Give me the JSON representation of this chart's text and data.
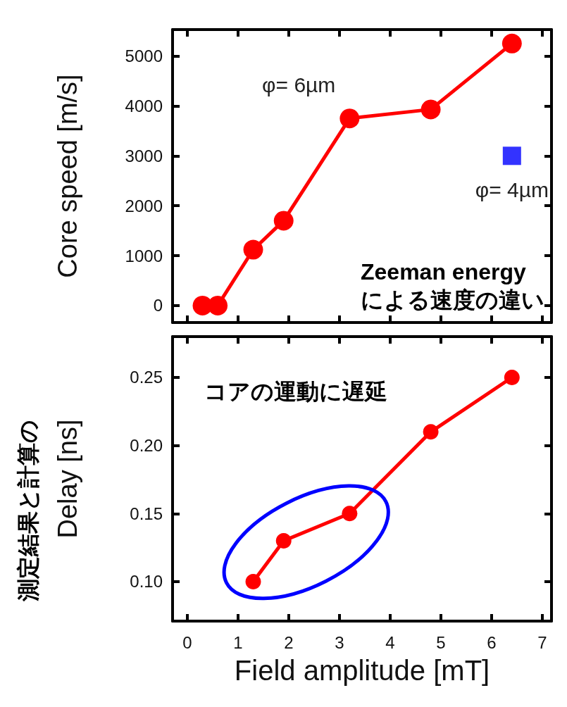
{
  "chart_data": [
    {
      "type": "line",
      "ylabel": "Core speed [m/s]",
      "xlim": [
        -0.29,
        7.18
      ],
      "xticks": [
        0,
        1,
        2,
        3,
        4,
        5,
        6,
        7
      ],
      "ylim": [
        -340,
        5530
      ],
      "yticks": [
        0,
        1000,
        2000,
        3000,
        4000,
        5000
      ],
      "tick_labels": "y",
      "marker": "circle",
      "line_style": "solid",
      "grid": false,
      "series": [
        {
          "name": "φ= 6µm",
          "color": "#ff0000",
          "x": [
            0.3,
            0.6,
            1.3,
            1.9,
            3.2,
            4.8,
            6.4
          ],
          "values": [
            0,
            0,
            1120,
            1700,
            3750,
            3930,
            5250
          ]
        },
        {
          "name": "φ= 4µm",
          "type": "scatter",
          "marker": "square",
          "color": "#0000ff",
          "x": [
            6.4
          ],
          "values": [
            3000
          ]
        }
      ],
      "annotations": [
        "Zeeman energy\nによる速度の違い"
      ]
    },
    {
      "type": "line",
      "xlabel": "Field amplitude [mT]",
      "ylabel": "Delay [ns]",
      "xlim": [
        -0.29,
        7.18
      ],
      "xticks": [
        0,
        1,
        2,
        3,
        4,
        5,
        6,
        7
      ],
      "ylim": [
        0.071,
        0.28
      ],
      "yticks": [
        {
          "value": 0.1,
          "label": "0.10"
        },
        {
          "value": 0.15,
          "label": "0.15"
        },
        {
          "value": 0.2,
          "label": "0.20"
        },
        {
          "value": 0.25,
          "label": "0.25"
        }
      ],
      "marker": "circle",
      "line_style": "solid",
      "grid": false,
      "series": [
        {
          "color": "#ff0000",
          "x": [
            1.3,
            1.9,
            3.2,
            4.8,
            6.4
          ],
          "values": [
            0.1,
            0.13,
            0.15,
            0.21,
            0.25
          ]
        }
      ],
      "annotations": [
        "コアの運動に遅延",
        "測定結果と計算の"
      ]
    }
  ]
}
